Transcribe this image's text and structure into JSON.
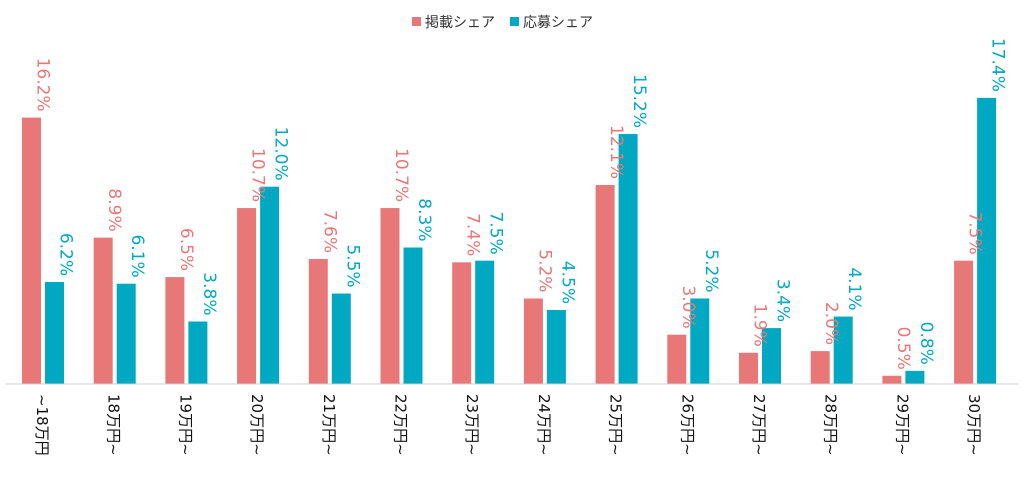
{
  "chart_data": {
    "type": "bar",
    "categories": [
      "~18万円",
      "18万円~",
      "19万円~",
      "20万円~",
      "21万円~",
      "22万円~",
      "23万円~",
      "24万円~",
      "25万円~",
      "26万円~",
      "27万円~",
      "28万円~",
      "29万円~",
      "30万円~"
    ],
    "series": [
      {
        "name": "掲載シェア",
        "color": "#E87878",
        "values": [
          16.2,
          8.9,
          6.5,
          10.7,
          7.6,
          10.7,
          7.4,
          5.2,
          12.1,
          3.0,
          1.9,
          2.0,
          0.5,
          7.5
        ],
        "labels": [
          "16.2%",
          "8.9%",
          "6.5%",
          "10.7%",
          "7.6%",
          "10.7%",
          "7.4%",
          "5.2%",
          "12.1%",
          "3.0%",
          "1.9%",
          "2.0%",
          "0.5%",
          "7.5%"
        ]
      },
      {
        "name": "応募シェア",
        "color": "#00A9C1",
        "values": [
          6.2,
          6.1,
          3.8,
          12.0,
          5.5,
          8.3,
          7.5,
          4.5,
          15.2,
          5.2,
          3.4,
          4.1,
          0.8,
          17.4
        ],
        "labels": [
          "6.2%",
          "6.1%",
          "3.8%",
          "12.0%",
          "5.5%",
          "8.3%",
          "7.5%",
          "4.5%",
          "15.2%",
          "5.2%",
          "3.4%",
          "4.1%",
          "0.8%",
          "17.4%"
        ]
      }
    ],
    "ylim": [
      0,
      18
    ],
    "legend_position": "top-center",
    "grid": false
  }
}
